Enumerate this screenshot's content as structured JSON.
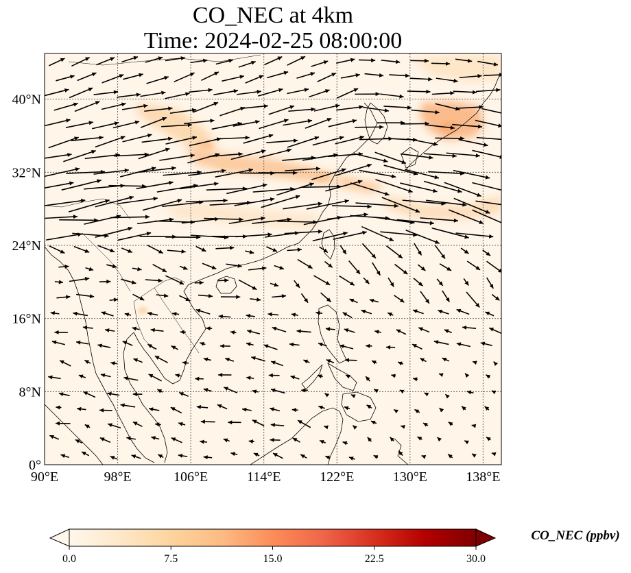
{
  "figure": {
    "title_line1": "CO_NEC at 4km",
    "title_line2": "Time: 2024-02-25 08:00:00"
  },
  "map": {
    "lon_range": [
      90,
      140
    ],
    "lat_range": [
      0,
      45
    ],
    "grid": "dotted",
    "coastlines": true,
    "x_ticks": [
      {
        "value": 90,
        "label": "90°E"
      },
      {
        "value": 98,
        "label": "98°E"
      },
      {
        "value": 106,
        "label": "106°E"
      },
      {
        "value": 114,
        "label": "114°E"
      },
      {
        "value": 122,
        "label": "122°E"
      },
      {
        "value": 130,
        "label": "130°E"
      },
      {
        "value": 138,
        "label": "138°E"
      }
    ],
    "y_ticks": [
      {
        "value": 0,
        "label": "0°"
      },
      {
        "value": 8,
        "label": "8°N"
      },
      {
        "value": 16,
        "label": "16°N"
      },
      {
        "value": 24,
        "label": "24°N"
      },
      {
        "value": 32,
        "label": "32°N"
      },
      {
        "value": 40,
        "label": "40°N"
      }
    ],
    "field_colormap": "OrRd",
    "background_color": "#fff7ec",
    "vectors": "wind arrows"
  },
  "colorbar": {
    "label": "CO_NEC (ppbv)",
    "min": 0,
    "max": 30,
    "extend": "both",
    "ticks": [
      {
        "value": 0,
        "label": "0.0"
      },
      {
        "value": 7.5,
        "label": "7.5"
      },
      {
        "value": 15,
        "label": "15.0"
      },
      {
        "value": 22.5,
        "label": "22.5"
      },
      {
        "value": 30,
        "label": "30.0"
      }
    ],
    "colors": [
      "#fff7ec",
      "#fee8c8",
      "#fdd49e",
      "#fdbb84",
      "#fc8d59",
      "#ef6548",
      "#d7301f",
      "#b30000",
      "#7f0000"
    ]
  }
}
